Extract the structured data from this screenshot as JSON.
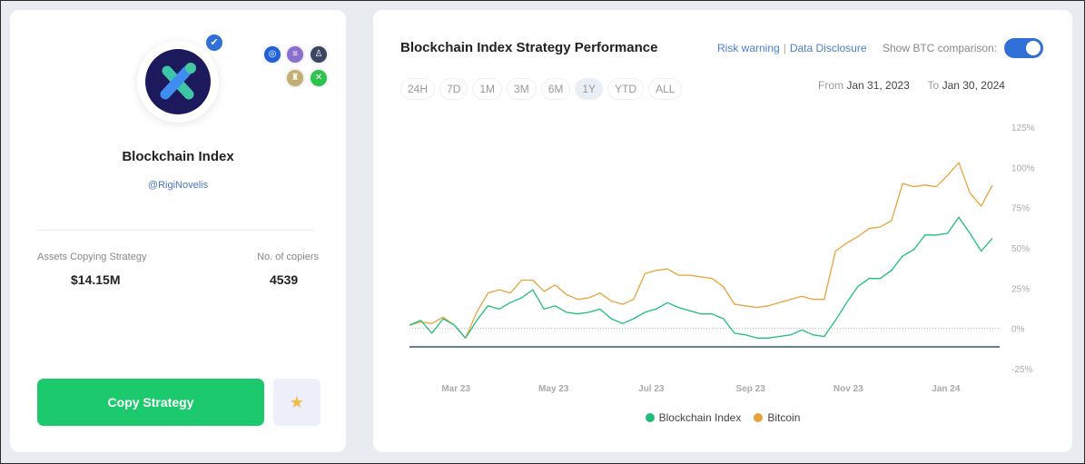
{
  "profile": {
    "name": "Blockchain Index",
    "handle": "@RigiNovelis",
    "verified": true,
    "coin_icons": [
      {
        "name": "coin-blue-icon",
        "color": "#2160d8"
      },
      {
        "name": "coin-purple-icon",
        "color": "#8a6fd0"
      },
      {
        "name": "coin-dark-icon",
        "color": "#3b4660"
      },
      {
        "name": "coin-gold-icon",
        "color": "#c4ad72"
      },
      {
        "name": "coin-green-icon",
        "color": "#2ec24e"
      }
    ],
    "stats": [
      {
        "label": "Assets Copying Strategy",
        "value": "$14.15M"
      },
      {
        "label": "No. of copiers",
        "value": "4539"
      }
    ],
    "copy_label": "Copy Strategy",
    "star_icon": "★"
  },
  "panel": {
    "title": "Blockchain Index Strategy Performance",
    "risk_warning": "Risk warning",
    "separator": "|",
    "data_disclosure": "Data Disclosure",
    "btc_toggle_label": "Show BTC comparison:",
    "btc_toggle_on": true,
    "ranges": [
      "24H",
      "7D",
      "1M",
      "3M",
      "6M",
      "1Y",
      "YTD",
      "ALL"
    ],
    "active_range": "1Y",
    "from_label": "From",
    "from_date": "Jan 31, 2023",
    "to_label": "To",
    "to_date": "Jan 30, 2024"
  },
  "chart_data": {
    "type": "line",
    "x_tick_labels": [
      "Mar 23",
      "May 23",
      "Jul 23",
      "Sep 23",
      "Nov 23",
      "Jan 24"
    ],
    "x_ticks": [
      "2023-03-01",
      "2023-05-01",
      "2023-07-01",
      "2023-09-01",
      "2023-11-01",
      "2024-01-01"
    ],
    "y_tick_labels": [
      "125%",
      "100%",
      "75%",
      "50%",
      "25%",
      "0%",
      "-25%"
    ],
    "y_ticks": [
      125,
      100,
      75,
      50,
      25,
      0,
      -25
    ],
    "ylim": [
      -25,
      125
    ],
    "xlim": [
      "2023-01-31",
      "2024-01-30"
    ],
    "legend_position": "bottom",
    "x": [
      "2023-01-31",
      "2023-02-07",
      "2023-02-14",
      "2023-02-21",
      "2023-02-28",
      "2023-03-07",
      "2023-03-14",
      "2023-03-21",
      "2023-03-28",
      "2023-04-04",
      "2023-04-11",
      "2023-04-18",
      "2023-04-25",
      "2023-05-02",
      "2023-05-09",
      "2023-05-16",
      "2023-05-23",
      "2023-05-30",
      "2023-06-06",
      "2023-06-13",
      "2023-06-20",
      "2023-06-27",
      "2023-07-04",
      "2023-07-11",
      "2023-07-18",
      "2023-07-25",
      "2023-08-01",
      "2023-08-08",
      "2023-08-15",
      "2023-08-22",
      "2023-08-29",
      "2023-09-05",
      "2023-09-12",
      "2023-09-19",
      "2023-09-26",
      "2023-10-03",
      "2023-10-10",
      "2023-10-17",
      "2023-10-24",
      "2023-10-31",
      "2023-11-07",
      "2023-11-14",
      "2023-11-21",
      "2023-11-28",
      "2023-12-05",
      "2023-12-12",
      "2023-12-19",
      "2023-12-26",
      "2024-01-02",
      "2024-01-09",
      "2024-01-16",
      "2024-01-23",
      "2024-01-30"
    ],
    "series": [
      {
        "name": "Blockchain Index",
        "color": "#1fbf7a",
        "values": [
          2,
          5,
          -3,
          6,
          2,
          -6,
          5,
          14,
          12,
          16,
          19,
          24,
          12,
          14,
          10,
          9,
          10,
          12,
          6,
          3,
          6,
          10,
          12,
          16,
          13,
          11,
          9,
          9,
          6,
          -3,
          -4,
          -6,
          -6,
          -5,
          -4,
          -1,
          -4,
          -5,
          5,
          16,
          26,
          31,
          31,
          36,
          45,
          49,
          58,
          58,
          59,
          69,
          59,
          48,
          56
        ]
      },
      {
        "name": "Bitcoin",
        "color": "#e8a33d",
        "values": [
          2,
          4,
          3,
          7,
          2,
          -6,
          10,
          22,
          24,
          22,
          30,
          30,
          23,
          27,
          21,
          18,
          19,
          22,
          17,
          15,
          18,
          34,
          36,
          37,
          33,
          33,
          32,
          31,
          26,
          15,
          14,
          13,
          14,
          16,
          18,
          20,
          18,
          18,
          48,
          53,
          57,
          62,
          63,
          67,
          90,
          88,
          89,
          88,
          95,
          103,
          84,
          76,
          89
        ]
      }
    ]
  }
}
